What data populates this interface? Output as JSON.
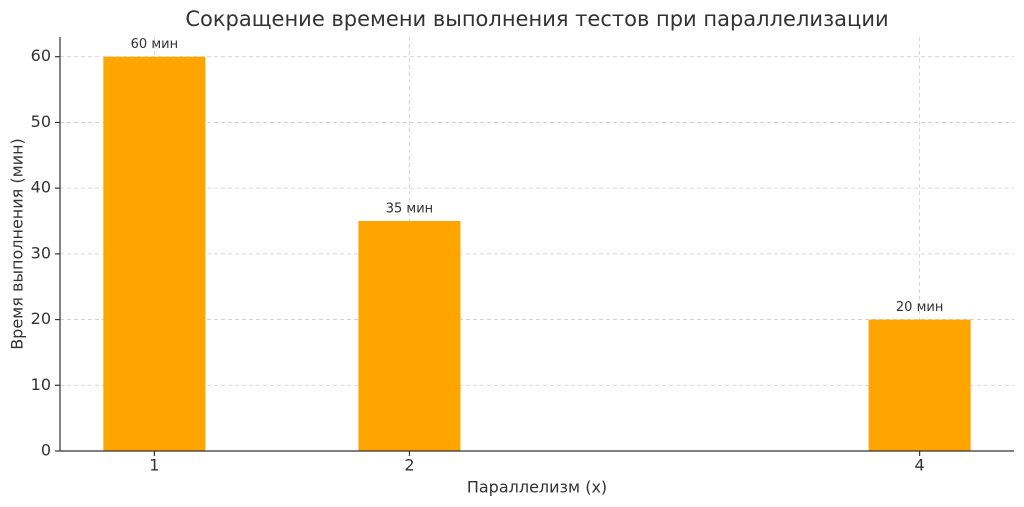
{
  "chart_data": {
    "type": "bar",
    "title": "Сокращение времени выполнения тестов при параллелизации",
    "x_label": "Параллелизм (x)",
    "y_label": "Время выполнения (мин)",
    "x": [
      1,
      2,
      4
    ],
    "values": [
      60,
      35,
      20
    ],
    "value_labels": [
      "60 мин",
      "35 мин",
      "20 мин"
    ],
    "color": "#ffa500",
    "xlim": [
      0.63,
      4.37
    ],
    "xticks": [
      1,
      2,
      4
    ],
    "ylim": [
      0,
      63
    ],
    "yticks": [
      0,
      10,
      20,
      30,
      40,
      50,
      60
    ],
    "grid": true
  }
}
